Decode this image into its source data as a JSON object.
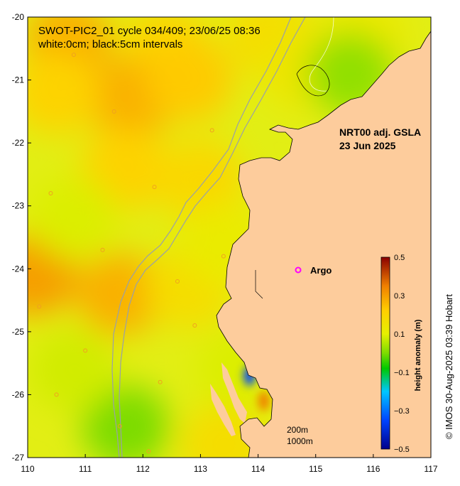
{
  "chart_data": {
    "type": "heatmap",
    "title_line1": "SWOT-PIC2_01 cycle 034/409; 23/06/25 08:36",
    "title_line2": "white:0cm; black:5cm intervals",
    "product_line1": "NRT00 adj. GSLA",
    "product_line2": "23 Jun 2025",
    "x_ticks": [
      "110",
      "111",
      "112",
      "113",
      "114",
      "115",
      "116",
      "117"
    ],
    "y_ticks": [
      "-20",
      "-21",
      "-22",
      "-23",
      "-24",
      "-25",
      "-26",
      "-27"
    ],
    "xlim": [
      110,
      117
    ],
    "ylim": [
      -27,
      -20
    ],
    "colorbar": {
      "label": "height anomaly (m)",
      "ticks": [
        "0.5",
        "0.3",
        "0.1",
        "−0.1",
        "−0.3",
        "−0.5"
      ],
      "range": [
        -0.5,
        0.5
      ]
    },
    "legend": {
      "marker_label": "Argo",
      "marker_color": "#ff00ff"
    },
    "scale_labels": [
      "200m",
      "1000m"
    ],
    "credit": "© IMOS 30-Aug-2025 03:39 Hobart",
    "anomaly_blobs": [
      {
        "lon": 110.7,
        "lat": -20.4,
        "value": 0.27
      },
      {
        "lon": 112.4,
        "lat": -20.5,
        "value": 0.2
      },
      {
        "lon": 111.8,
        "lat": -21.3,
        "value": 0.27
      },
      {
        "lon": 110.5,
        "lat": -21.2,
        "value": 0.21
      },
      {
        "lon": 112.8,
        "lat": -21.0,
        "value": 0.23
      },
      {
        "lon": 114.2,
        "lat": -20.3,
        "value": 0.17
      },
      {
        "lon": 114.8,
        "lat": -20.8,
        "value": 0.14
      },
      {
        "lon": 110.1,
        "lat": -24.1,
        "value": 0.3
      },
      {
        "lon": 111.6,
        "lat": -24.4,
        "value": 0.27
      },
      {
        "lon": 112.8,
        "lat": -24.3,
        "value": 0.17
      },
      {
        "lon": 111.7,
        "lat": -22.4,
        "value": 0.21
      },
      {
        "lon": 113.0,
        "lat": -22.6,
        "value": 0.19
      },
      {
        "lon": 110.8,
        "lat": -23.2,
        "value": 0.09
      },
      {
        "lon": 111.7,
        "lat": -26.5,
        "value": 0.0
      },
      {
        "lon": 113.4,
        "lat": -26.8,
        "value": 0.17
      },
      {
        "lon": 110.8,
        "lat": -25.6,
        "value": 0.08
      },
      {
        "lon": 113.4,
        "lat": -23.6,
        "value": 0.12
      },
      {
        "lon": 115.8,
        "lat": -20.3,
        "value": 0.13
      },
      {
        "lon": 115.6,
        "lat": -20.9,
        "value": 0.02
      },
      {
        "lon": 113.7,
        "lat": -25.6,
        "value": 0.09
      },
      {
        "lon": 113.85,
        "lat": -25.7,
        "value": -0.35
      },
      {
        "lon": 114.1,
        "lat": -26.1,
        "value": 0.35
      }
    ]
  }
}
